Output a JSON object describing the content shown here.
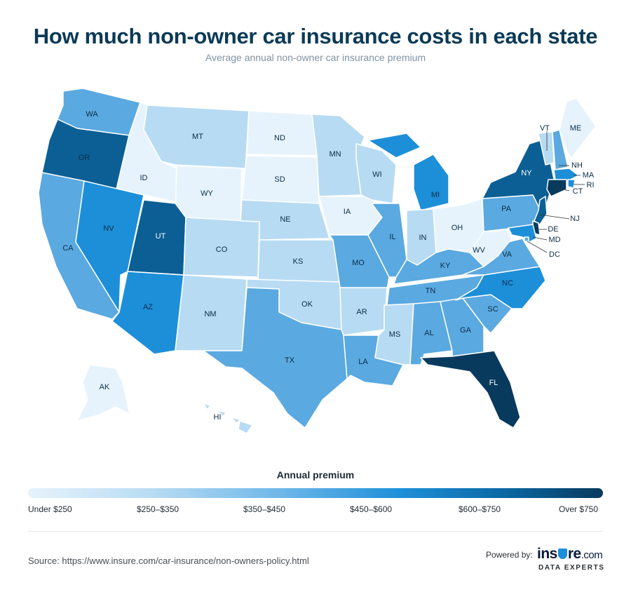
{
  "title": "How much non-owner car insurance costs in each state",
  "subtitle": "Average annual non-owner car insurance premium",
  "legend": {
    "title": "Annual premium",
    "labels": [
      "Under $250",
      "$250–$350",
      "$350–$450",
      "$450–$600",
      "$600–$750",
      "Over $750"
    ]
  },
  "colors": {
    "under_250": "#e6f3fc",
    "250_350": "#b7dbf3",
    "350_450": "#5aa9e0",
    "450_600": "#1d8fd8",
    "600_750": "#0b5f95",
    "over_750": "#083a5e"
  },
  "states": [
    {
      "code": "WA",
      "tier": "350_450"
    },
    {
      "code": "OR",
      "tier": "600_750"
    },
    {
      "code": "CA",
      "tier": "350_450"
    },
    {
      "code": "ID",
      "tier": "under_250"
    },
    {
      "code": "NV",
      "tier": "450_600"
    },
    {
      "code": "MT",
      "tier": "250_350"
    },
    {
      "code": "WY",
      "tier": "under_250"
    },
    {
      "code": "UT",
      "tier": "600_750"
    },
    {
      "code": "AZ",
      "tier": "450_600"
    },
    {
      "code": "CO",
      "tier": "250_350"
    },
    {
      "code": "NM",
      "tier": "250_350"
    },
    {
      "code": "ND",
      "tier": "under_250"
    },
    {
      "code": "SD",
      "tier": "under_250"
    },
    {
      "code": "NE",
      "tier": "250_350"
    },
    {
      "code": "KS",
      "tier": "250_350"
    },
    {
      "code": "OK",
      "tier": "250_350"
    },
    {
      "code": "TX",
      "tier": "350_450"
    },
    {
      "code": "MN",
      "tier": "250_350"
    },
    {
      "code": "IA",
      "tier": "under_250"
    },
    {
      "code": "MO",
      "tier": "350_450"
    },
    {
      "code": "AR",
      "tier": "250_350"
    },
    {
      "code": "LA",
      "tier": "350_450"
    },
    {
      "code": "WI",
      "tier": "250_350"
    },
    {
      "code": "IL",
      "tier": "350_450"
    },
    {
      "code": "MI",
      "tier": "450_600"
    },
    {
      "code": "IN",
      "tier": "250_350"
    },
    {
      "code": "OH",
      "tier": "under_250"
    },
    {
      "code": "KY",
      "tier": "350_450"
    },
    {
      "code": "TN",
      "tier": "350_450"
    },
    {
      "code": "MS",
      "tier": "250_350"
    },
    {
      "code": "AL",
      "tier": "350_450"
    },
    {
      "code": "GA",
      "tier": "350_450"
    },
    {
      "code": "FL",
      "tier": "over_750"
    },
    {
      "code": "SC",
      "tier": "350_450"
    },
    {
      "code": "NC",
      "tier": "450_600"
    },
    {
      "code": "VA",
      "tier": "350_450"
    },
    {
      "code": "WV",
      "tier": "under_250"
    },
    {
      "code": "PA",
      "tier": "350_450"
    },
    {
      "code": "NY",
      "tier": "600_750"
    },
    {
      "code": "VT",
      "tier": "250_350"
    },
    {
      "code": "NH",
      "tier": "350_450"
    },
    {
      "code": "ME",
      "tier": "under_250"
    },
    {
      "code": "MA",
      "tier": "450_600"
    },
    {
      "code": "RI",
      "tier": "450_600"
    },
    {
      "code": "CT",
      "tier": "over_750"
    },
    {
      "code": "NJ",
      "tier": "600_750"
    },
    {
      "code": "DE",
      "tier": "over_750"
    },
    {
      "code": "MD",
      "tier": "450_600"
    },
    {
      "code": "DC",
      "tier": "350_450"
    },
    {
      "code": "AK",
      "tier": "under_250"
    },
    {
      "code": "HI",
      "tier": "250_350"
    }
  ],
  "source": "Source: https://www.insure.com/car-insurance/non-owners-policy.html",
  "powered_by": "Powered by:",
  "logo": {
    "main_a": "ins",
    "main_b": "re",
    "suffix": ".com",
    "sub": "DATA EXPERTS"
  }
}
